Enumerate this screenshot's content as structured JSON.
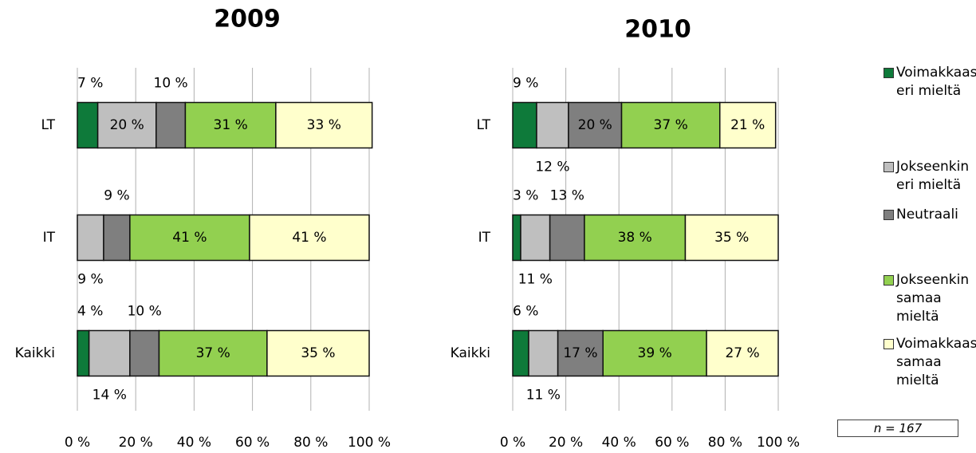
{
  "chart_data": [
    {
      "type": "stacked-barh",
      "title": "2009",
      "categories": [
        "LT",
        "IT",
        "Kaikki"
      ],
      "series": [
        {
          "values": [
            7,
            0,
            4
          ],
          "value_labels": [
            "7 %",
            null,
            "4 %"
          ]
        },
        {
          "values": [
            20,
            9,
            14
          ],
          "value_labels": [
            "20 %",
            "9 %",
            "14 %"
          ]
        },
        {
          "values": [
            10,
            9,
            10
          ],
          "value_labels": [
            "10 %",
            "9 %",
            "10 %"
          ]
        },
        {
          "values": [
            31,
            41,
            37
          ],
          "value_labels": [
            "31 %",
            "41 %",
            "37 %"
          ]
        },
        {
          "values": [
            33,
            41,
            35
          ],
          "value_labels": [
            "33 %",
            "41 %",
            "35 %"
          ]
        }
      ],
      "xlim": [
        0,
        100
      ],
      "xticks": [
        {
          "value": 0,
          "label": "0 %"
        },
        {
          "value": 20,
          "label": "20 %"
        },
        {
          "value": 40,
          "label": "40 %"
        },
        {
          "value": 60,
          "label": "60 %"
        },
        {
          "value": 80,
          "label": "80 %"
        },
        {
          "value": 100,
          "label": "100 %"
        }
      ],
      "grid": true
    },
    {
      "type": "stacked-barh",
      "title": "2010",
      "categories": [
        "LT",
        "IT",
        "Kaikki"
      ],
      "series": [
        {
          "values": [
            9,
            3,
            6
          ],
          "value_labels": [
            "9 %",
            "3 %",
            "6 %"
          ]
        },
        {
          "values": [
            12,
            11,
            11
          ],
          "value_labels": [
            "12 %",
            "11 %",
            "11 %"
          ]
        },
        {
          "values": [
            20,
            13,
            17
          ],
          "value_labels": [
            "20 %",
            "13 %",
            "17 %"
          ]
        },
        {
          "values": [
            37,
            38,
            39
          ],
          "value_labels": [
            "37 %",
            "38 %",
            "39 %"
          ]
        },
        {
          "values": [
            21,
            35,
            27
          ],
          "value_labels": [
            "21 %",
            "35 %",
            "27 %"
          ]
        }
      ],
      "xlim": [
        0,
        100
      ],
      "xticks": [
        {
          "value": 0,
          "label": "0 %"
        },
        {
          "value": 20,
          "label": "20 %"
        },
        {
          "value": 40,
          "label": "40 %"
        },
        {
          "value": 60,
          "label": "60 %"
        },
        {
          "value": 80,
          "label": "80 %"
        },
        {
          "value": 100,
          "label": "100 %"
        }
      ],
      "grid": true
    }
  ],
  "legend": [
    {
      "name": "Voimakkaasti eri mieltä",
      "color": "#0e7a3a"
    },
    {
      "name": "Jokseenkin eri mieltä",
      "color": "#bfbfbf"
    },
    {
      "name": "Neutraali",
      "color": "#7f7f7f"
    },
    {
      "name": "Jokseenkin samaa mieltä",
      "color": "#92d050"
    },
    {
      "name": "Voimakkaasti samaa mieltä",
      "color": "#ffffcc"
    }
  ],
  "note": "n = 167"
}
